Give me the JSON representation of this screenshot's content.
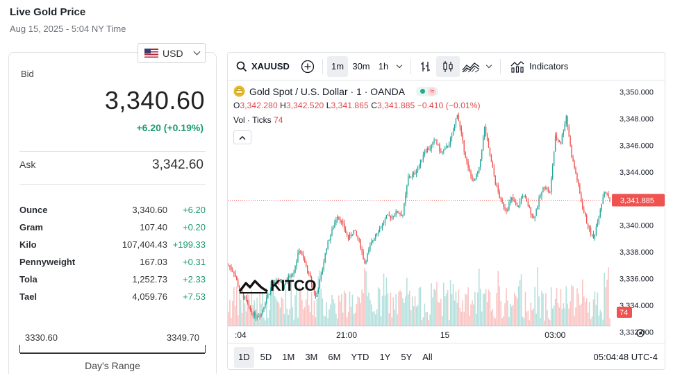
{
  "header": {
    "title": "Live Gold Price",
    "subtitle": "Aug 15, 2025 - 5:04 NY Time"
  },
  "currency": {
    "selected": "USD"
  },
  "quote": {
    "bid_label": "Bid",
    "bid": "3,340.60",
    "change": "+6.20 (+0.19%)",
    "ask_label": "Ask",
    "ask": "3,342.60"
  },
  "units": [
    {
      "name": "Ounce",
      "price": "3,340.60",
      "change": "+6.20"
    },
    {
      "name": "Gram",
      "price": "107.40",
      "change": "+0.20"
    },
    {
      "name": "Kilo",
      "price": "107,404.43",
      "change": "+199.33"
    },
    {
      "name": "Pennyweight",
      "price": "167.03",
      "change": "+0.31"
    },
    {
      "name": "Tola",
      "price": "1,252.73",
      "change": "+2.33"
    },
    {
      "name": "Tael",
      "price": "4,059.76",
      "change": "+7.53"
    }
  ],
  "days_range": {
    "low": "3330.60",
    "high": "3349.70",
    "label": "Day's Range"
  },
  "toolbar": {
    "symbol": "XAUUSD",
    "intervals": [
      "1m",
      "30m",
      "1h"
    ],
    "active_interval": "1m",
    "indicators_label": "Indicators"
  },
  "legend": {
    "title": "Gold Spot / U.S. Dollar · 1 · OANDA",
    "o_label": "O",
    "o": "3,342.280",
    "h_label": "H",
    "h": "3,342.520",
    "l_label": "L",
    "l": "3,341.865",
    "c_label": "C",
    "c": "3,341.885",
    "change": "−0.410 (−0.01%)",
    "vol_label": "Vol · Ticks",
    "vol": "74"
  },
  "logo_text": "KITCO",
  "ranges": [
    "1D",
    "5D",
    "1M",
    "3M",
    "6M",
    "YTD",
    "1Y",
    "5Y",
    "All"
  ],
  "active_range": "1D",
  "clock": "05:04:48 UTC-4",
  "colors": {
    "up": "#26a69a",
    "down": "#ef5350",
    "accent": "#1a9a72"
  },
  "chart_data": {
    "type": "candlestick",
    "y_ticks": [
      "3,350.000",
      "3,348.000",
      "3,346.000",
      "3,344.000",
      "3,342.000",
      "3,340.000",
      "3,338.000",
      "3,336.000",
      "3,334.000",
      "3,332.000"
    ],
    "ylim": [
      3331.2,
      3350.8
    ],
    "x_ticks": [
      ":04",
      "21:00",
      "15",
      "03:00"
    ],
    "current_price": 3341.885,
    "current_price_label": "3,341.885",
    "current_volume_label": "74",
    "close_path": [
      [
        0,
        3337.0
      ],
      [
        4,
        3336.5
      ],
      [
        8,
        3335.2
      ],
      [
        12,
        3334.5
      ],
      [
        16,
        3333.6
      ],
      [
        20,
        3333.2
      ],
      [
        24,
        3333.4
      ],
      [
        28,
        3334.6
      ],
      [
        32,
        3335.4
      ],
      [
        36,
        3335.9
      ],
      [
        40,
        3335.4
      ],
      [
        44,
        3336.1
      ],
      [
        48,
        3336.6
      ],
      [
        52,
        3338.2
      ],
      [
        56,
        3337.2
      ],
      [
        60,
        3336.0
      ],
      [
        64,
        3334.6
      ],
      [
        68,
        3336.2
      ],
      [
        72,
        3338.4
      ],
      [
        76,
        3339.6
      ],
      [
        80,
        3340.8
      ],
      [
        84,
        3340.0
      ],
      [
        88,
        3339.0
      ],
      [
        92,
        3339.6
      ],
      [
        96,
        3338.8
      ],
      [
        100,
        3337.2
      ],
      [
        104,
        3338.4
      ],
      [
        108,
        3339.4
      ],
      [
        112,
        3339.9
      ],
      [
        116,
        3340.6
      ],
      [
        120,
        3340.7
      ],
      [
        124,
        3341.0
      ],
      [
        128,
        3340.8
      ],
      [
        132,
        3343.6
      ],
      [
        136,
        3343.8
      ],
      [
        140,
        3344.5
      ],
      [
        144,
        3345.6
      ],
      [
        148,
        3345.8
      ],
      [
        152,
        3346.4
      ],
      [
        156,
        3345.4
      ],
      [
        160,
        3345.8
      ],
      [
        164,
        3346.6
      ],
      [
        168,
        3348.4
      ],
      [
        172,
        3346.2
      ],
      [
        176,
        3344.2
      ],
      [
        180,
        3343.2
      ],
      [
        184,
        3344.2
      ],
      [
        188,
        3347.3
      ],
      [
        192,
        3345.2
      ],
      [
        196,
        3343.2
      ],
      [
        200,
        3341.8
      ],
      [
        204,
        3341.2
      ],
      [
        208,
        3342.0
      ],
      [
        212,
        3341.3
      ],
      [
        216,
        3342.3
      ],
      [
        220,
        3341.5
      ],
      [
        224,
        3340.5
      ],
      [
        228,
        3341.9
      ],
      [
        232,
        3343.0
      ],
      [
        236,
        3342.4
      ],
      [
        240,
        3346.6
      ],
      [
        244,
        3346.2
      ],
      [
        248,
        3348.2
      ],
      [
        252,
        3345.2
      ],
      [
        256,
        3343.4
      ],
      [
        260,
        3341.3
      ],
      [
        264,
        3339.9
      ],
      [
        268,
        3339.0
      ],
      [
        272,
        3340.8
      ],
      [
        276,
        3342.6
      ],
      [
        280,
        3341.885
      ]
    ],
    "volume_range": [
      0,
      100
    ]
  }
}
